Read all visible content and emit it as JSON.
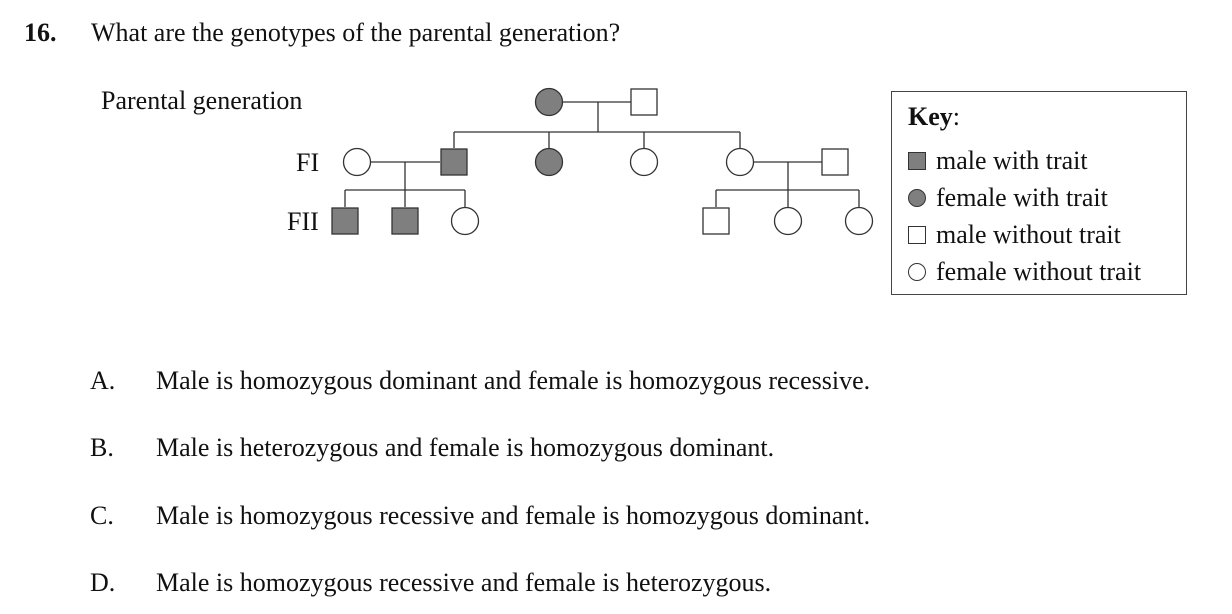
{
  "question": {
    "number": "16.",
    "text": "What are the genotypes of the parental generation?"
  },
  "pedigree": {
    "labels": {
      "parental": "Parental generation",
      "fi": "FI",
      "fii": "FII"
    },
    "individuals": [
      {
        "id": "p-female",
        "generation": "parental",
        "sex": "female",
        "affected": true
      },
      {
        "id": "p-male",
        "generation": "parental",
        "sex": "male",
        "affected": false
      },
      {
        "id": "fi-spouse-female",
        "generation": "FI",
        "sex": "female",
        "affected": false
      },
      {
        "id": "fi-male-1",
        "generation": "FI",
        "sex": "male",
        "affected": true
      },
      {
        "id": "fi-female-2",
        "generation": "FI",
        "sex": "female",
        "affected": true
      },
      {
        "id": "fi-female-3",
        "generation": "FI",
        "sex": "female",
        "affected": false
      },
      {
        "id": "fi-female-4",
        "generation": "FI",
        "sex": "female",
        "affected": false
      },
      {
        "id": "fi-spouse-male",
        "generation": "FI",
        "sex": "male",
        "affected": false
      },
      {
        "id": "fii-male-1",
        "generation": "FII",
        "sex": "male",
        "affected": true
      },
      {
        "id": "fii-male-2",
        "generation": "FII",
        "sex": "male",
        "affected": true
      },
      {
        "id": "fii-female-3",
        "generation": "FII",
        "sex": "female",
        "affected": false
      },
      {
        "id": "fii-male-4",
        "generation": "FII",
        "sex": "male",
        "affected": false
      },
      {
        "id": "fii-female-5",
        "generation": "FII",
        "sex": "female",
        "affected": false
      },
      {
        "id": "fii-female-6",
        "generation": "FII",
        "sex": "female",
        "affected": false
      }
    ],
    "colors": {
      "affected": "#7f7f7f",
      "unaffected": "#ffffff",
      "stroke": "#333333"
    }
  },
  "key": {
    "title": "Key",
    "title_suffix": ":",
    "items": [
      {
        "symbol": "male-filled",
        "label": "male with trait"
      },
      {
        "symbol": "female-filled",
        "label": "female with trait"
      },
      {
        "symbol": "male-empty",
        "label": "male without trait"
      },
      {
        "symbol": "female-empty",
        "label": "female without trait"
      }
    ]
  },
  "options": [
    {
      "letter": "A.",
      "text": "Male is homozygous dominant and female is homozygous recessive."
    },
    {
      "letter": "B.",
      "text": "Male is heterozygous and female is homozygous dominant."
    },
    {
      "letter": "C.",
      "text": "Male is homozygous recessive and female is homozygous dominant."
    },
    {
      "letter": "D.",
      "text": "Male is homozygous recessive and female is heterozygous."
    }
  ]
}
